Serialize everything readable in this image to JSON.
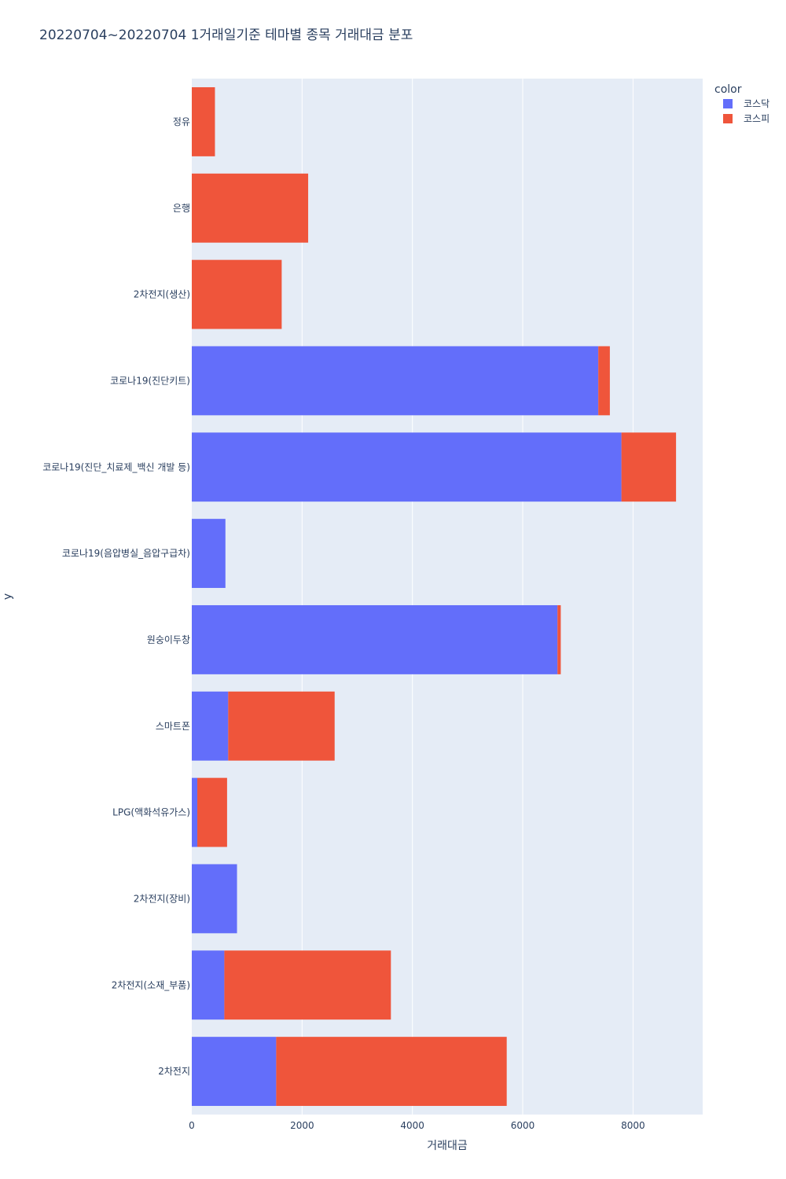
{
  "chart_data": {
    "type": "bar",
    "orientation": "horizontal",
    "barmode": "stack",
    "title": "20220704~20220704 1거래일기준 테마별 종목 거래대금 분포",
    "xlabel": "거래대금",
    "ylabel": "y",
    "xlim": [
      0,
      9263
    ],
    "xticks": [
      0,
      2000,
      4000,
      6000,
      8000
    ],
    "grid": true,
    "legend_title": "color",
    "legend_position": "top-right",
    "categories": [
      "정유",
      "은행",
      "2차전지(생산)",
      "코로나19(진단키트)",
      "코로나19(진단_치료제_백신 개발 등)",
      "코로나19(음압병실_음압구급차)",
      "원숭이두창",
      "스마트폰",
      "LPG(액화석유가스)",
      "2차전지(장비)",
      "2차전지(소재_부품)",
      "2차전지"
    ],
    "series": [
      {
        "name": "코스닥",
        "color": "#636efa",
        "values": [
          0,
          0,
          0,
          7370,
          7790,
          610,
          6630,
          660,
          100,
          820,
          590,
          1530
        ]
      },
      {
        "name": "코스피",
        "color": "#ef553b",
        "values": [
          420,
          2110,
          1630,
          210,
          990,
          0,
          60,
          1930,
          540,
          0,
          3020,
          4180
        ]
      }
    ]
  }
}
